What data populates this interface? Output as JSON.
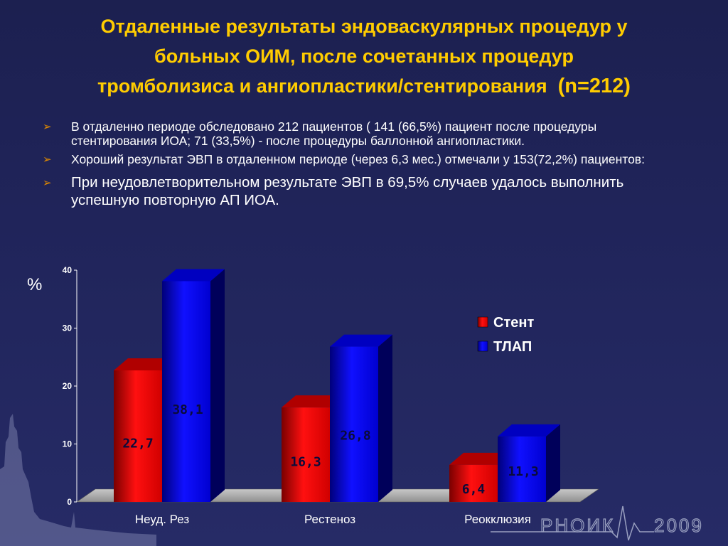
{
  "title": {
    "line1": "Отдаленные результаты эндоваскулярных процедур  у",
    "line2": "больных ОИМ, после  сочетанных процедур",
    "line3": "тромболизиса и ангиопластики/стентирования",
    "n": "(n=212)"
  },
  "bullets": [
    "В отдаленно периоде обследовано 212 пациентов ( 141 (66,5%) пациент после процедуры стентирования ИОА; 71 (33,5%) - после процедуры  баллонной ангиопластики.",
    "Хороший результат ЭВП в отдаленном периоде (через 6,3 мес.) отмечали у 153(72,2%) пациентов:",
    "При неудовлетворительном результате ЭВП в 69,5% случаев удалось выполнить успешную повторную АП ИОА."
  ],
  "bullet_marker": "➢",
  "chart_data": {
    "type": "bar",
    "ylabel": "%",
    "ylim": [
      0,
      40
    ],
    "yticks": [
      "0",
      "10",
      "20",
      "30",
      "40"
    ],
    "categories": [
      "Неуд. Рез",
      "Рестеноз",
      "Реокклюзия"
    ],
    "series": [
      {
        "name": "Стент",
        "values": [
          22.7,
          16.3,
          6.4
        ],
        "labels": [
          "22,7",
          "16,3",
          "6,4"
        ],
        "color": "#ff0000"
      },
      {
        "name": "ТЛАП",
        "values": [
          38.1,
          26.8,
          11.3
        ],
        "labels": [
          "38,1",
          "26,8",
          "11,3"
        ],
        "color": "#0000ff"
      }
    ],
    "legend_position": "right"
  },
  "logo": {
    "text": "РНОИК",
    "year": "2009"
  }
}
